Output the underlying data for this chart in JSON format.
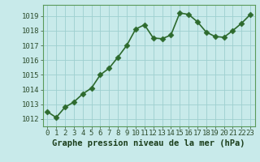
{
  "x": [
    0,
    1,
    2,
    3,
    4,
    5,
    6,
    7,
    8,
    9,
    10,
    11,
    12,
    13,
    14,
    15,
    16,
    17,
    18,
    19,
    20,
    21,
    22,
    23
  ],
  "y": [
    1012.5,
    1012.1,
    1012.8,
    1013.15,
    1013.7,
    1014.1,
    1015.0,
    1015.45,
    1016.2,
    1017.0,
    1018.1,
    1018.4,
    1017.5,
    1017.45,
    1017.7,
    1019.2,
    1019.1,
    1018.6,
    1017.9,
    1017.6,
    1017.55,
    1018.0,
    1018.5,
    1019.1
  ],
  "ylim": [
    1011.5,
    1019.75
  ],
  "xlim": [
    -0.5,
    23.5
  ],
  "yticks": [
    1012,
    1013,
    1014,
    1015,
    1016,
    1017,
    1018,
    1019
  ],
  "xticks": [
    0,
    1,
    2,
    3,
    4,
    5,
    6,
    7,
    8,
    9,
    10,
    11,
    12,
    13,
    14,
    15,
    16,
    17,
    18,
    19,
    20,
    21,
    22,
    23
  ],
  "line_color": "#2d6a2d",
  "marker_color": "#2d6a2d",
  "bg_color": "#c8eaea",
  "grid_color": "#9dcfcf",
  "xlabel": "Graphe pression niveau de la mer (hPa)",
  "xlabel_fontsize": 7.5,
  "tick_fontsize": 6.5,
  "line_width": 1.2,
  "marker_size": 3.5
}
